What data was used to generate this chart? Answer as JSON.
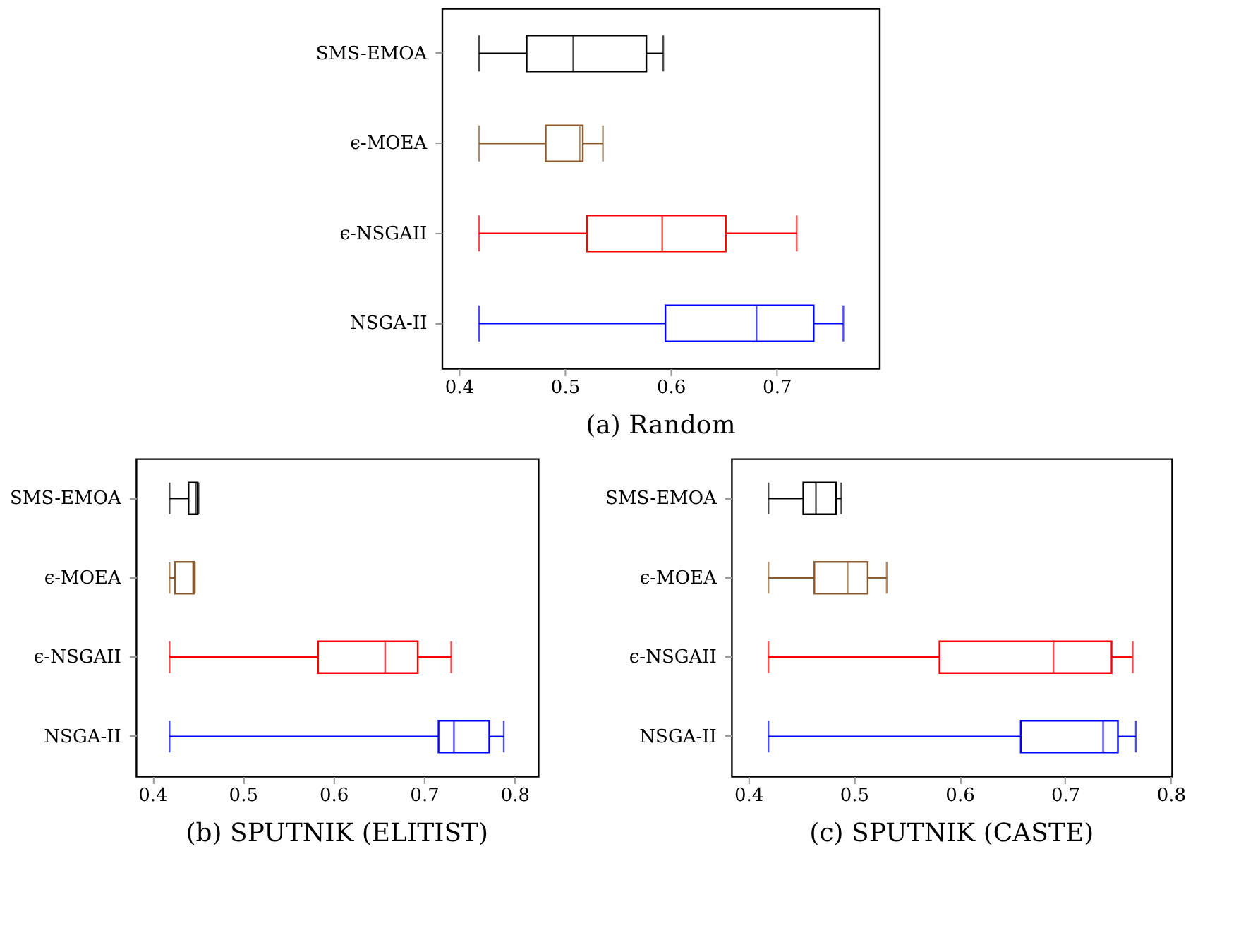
{
  "chart_data": [
    {
      "type": "box",
      "title": "(a) Random",
      "orientation": "horizontal",
      "categories": [
        "SMS-EMOA",
        "ϵ-MOEA",
        "ϵ-NSGAII",
        "NSGA-II"
      ],
      "colors": [
        "#000000",
        "#8c5a2c",
        "#ff0000",
        "#0000ff"
      ],
      "xlim": [
        0.384,
        0.797
      ],
      "xticks": [
        0.4,
        0.5,
        0.6,
        0.7
      ],
      "grid": false,
      "boxes": [
        {
          "low": 0.419,
          "q1": 0.464,
          "median": 0.508,
          "q3": 0.577,
          "high": 0.593
        },
        {
          "low": 0.419,
          "q1": 0.482,
          "median": 0.514,
          "q3": 0.517,
          "high": 0.536
        },
        {
          "low": 0.419,
          "q1": 0.521,
          "median": 0.592,
          "q3": 0.652,
          "high": 0.719
        },
        {
          "low": 0.419,
          "q1": 0.595,
          "median": 0.681,
          "q3": 0.735,
          "high": 0.763
        }
      ]
    },
    {
      "type": "box",
      "title": "(b) SPUTNIK (ELITIST)",
      "orientation": "horizontal",
      "categories": [
        "SMS-EMOA",
        "ϵ-MOEA",
        "ϵ-NSGAII",
        "NSGA-II"
      ],
      "colors": [
        "#000000",
        "#8c5a2c",
        "#ff0000",
        "#0000ff"
      ],
      "xlim": [
        0.382,
        0.826
      ],
      "xticks": [
        0.4,
        0.5,
        0.6,
        0.7,
        0.8
      ],
      "grid": false,
      "boxes": [
        {
          "low": 0.419,
          "q1": 0.44,
          "median": 0.448,
          "q3": 0.45,
          "high": 0.451
        },
        {
          "low": 0.419,
          "q1": 0.425,
          "median": 0.445,
          "q3": 0.446,
          "high": 0.447
        },
        {
          "low": 0.419,
          "q1": 0.583,
          "median": 0.657,
          "q3": 0.693,
          "high": 0.73
        },
        {
          "low": 0.419,
          "q1": 0.716,
          "median": 0.733,
          "q3": 0.772,
          "high": 0.788
        }
      ]
    },
    {
      "type": "box",
      "title": "(c) SPUTNIK (CASTE)",
      "orientation": "horizontal",
      "categories": [
        "SMS-EMOA",
        "ϵ-MOEA",
        "ϵ-NSGAII",
        "NSGA-II"
      ],
      "colors": [
        "#000000",
        "#8c5a2c",
        "#ff0000",
        "#0000ff"
      ],
      "xlim": [
        0.384,
        0.801
      ],
      "xticks": [
        0.4,
        0.5,
        0.6,
        0.7,
        0.8
      ],
      "grid": false,
      "boxes": [
        {
          "low": 0.419,
          "q1": 0.452,
          "median": 0.464,
          "q3": 0.483,
          "high": 0.488
        },
        {
          "low": 0.419,
          "q1": 0.4625,
          "median": 0.494,
          "q3": 0.513,
          "high": 0.531
        },
        {
          "low": 0.419,
          "q1": 0.581,
          "median": 0.689,
          "q3": 0.744,
          "high": 0.764
        },
        {
          "low": 0.419,
          "q1": 0.658,
          "median": 0.736,
          "q3": 0.75,
          "high": 0.767
        }
      ]
    }
  ]
}
